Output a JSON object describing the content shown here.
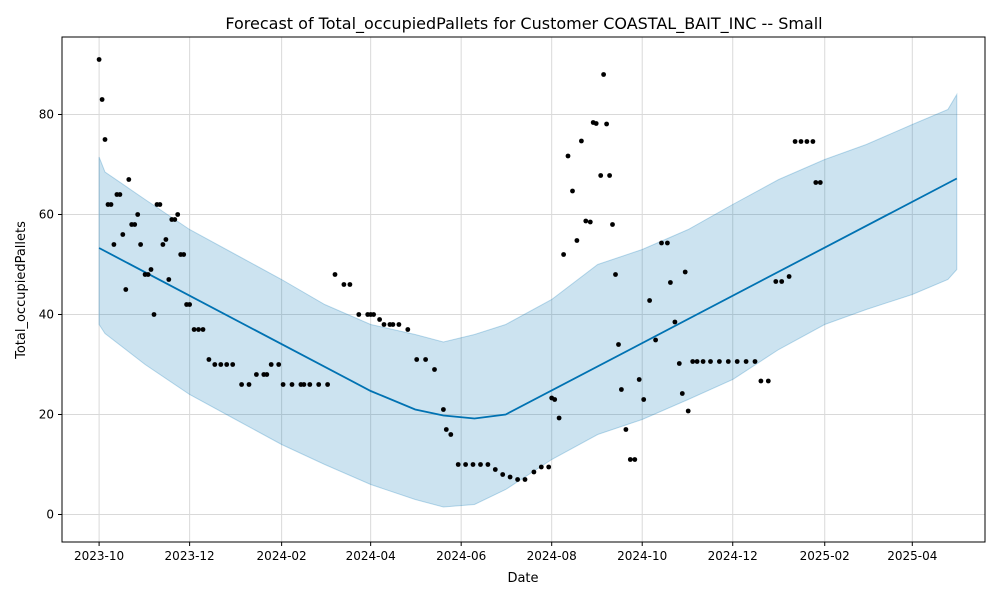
{
  "chart_data": {
    "type": "line",
    "title": "Forecast of Total_occupiedPallets for Customer COASTAL_BAIT_INC -- Small",
    "xlabel": "Date",
    "ylabel": "Total_occupiedPallets",
    "xlim": [
      "2023-09-06",
      "2025-05-20"
    ],
    "ylim": [
      -5.5,
      95.5
    ],
    "grid": true,
    "x_ticks": [
      "2023-10",
      "2023-12",
      "2024-02",
      "2024-04",
      "2024-06",
      "2024-08",
      "2024-10",
      "2024-12",
      "2025-02",
      "2025-04"
    ],
    "y_ticks": [
      0,
      20,
      40,
      60,
      80
    ],
    "colors": {
      "forecast": "#0072B2",
      "interval": "#0072B2",
      "observed": "#000000",
      "grid": "#d9d9d9"
    },
    "forecast": {
      "x": [
        "2023-10-01",
        "2024-04-01",
        "2024-05-01",
        "2024-05-20",
        "2024-06-10",
        "2024-07-01",
        "2025-05-01"
      ],
      "y": [
        53.3,
        24.7,
        21.0,
        19.8,
        19.2,
        20.0,
        67.2
      ]
    },
    "interval": {
      "x": [
        "2023-10-01",
        "2023-10-05",
        "2023-11-01",
        "2023-12-01",
        "2024-01-01",
        "2024-02-01",
        "2024-03-01",
        "2024-04-01",
        "2024-05-01",
        "2024-05-20",
        "2024-06-10",
        "2024-07-01",
        "2024-08-01",
        "2024-09-01",
        "2024-10-01",
        "2024-11-01",
        "2024-12-01",
        "2025-01-01",
        "2025-02-01",
        "2025-03-01",
        "2025-04-01",
        "2025-04-25",
        "2025-05-01"
      ],
      "lower": [
        38,
        36.2,
        30,
        24,
        19,
        14,
        10,
        6,
        3,
        1.5,
        2,
        5,
        11,
        16,
        19,
        23,
        27,
        33,
        38,
        41,
        44,
        47,
        49
      ],
      "upper": [
        71.5,
        68.5,
        63,
        57,
        52,
        47,
        42,
        38,
        36,
        34.5,
        36,
        38,
        43,
        50,
        53,
        57,
        62,
        67,
        71,
        74,
        78,
        81,
        84
      ]
    },
    "observed": {
      "x": [
        "2023-10-01",
        "2023-10-03",
        "2023-10-05",
        "2023-10-07",
        "2023-10-09",
        "2023-10-11",
        "2023-10-13",
        "2023-10-15",
        "2023-10-17",
        "2023-10-19",
        "2023-10-21",
        "2023-10-23",
        "2023-10-25",
        "2023-10-27",
        "2023-10-29",
        "2023-11-01",
        "2023-11-03",
        "2023-11-05",
        "2023-11-07",
        "2023-11-09",
        "2023-11-11",
        "2023-11-13",
        "2023-11-15",
        "2023-11-17",
        "2023-11-19",
        "2023-11-21",
        "2023-11-23",
        "2023-11-25",
        "2023-11-27",
        "2023-11-29",
        "2023-12-01",
        "2023-12-04",
        "2023-12-07",
        "2023-12-10",
        "2023-12-14",
        "2023-12-18",
        "2023-12-22",
        "2023-12-26",
        "2023-12-30",
        "2024-01-05",
        "2024-01-10",
        "2024-01-15",
        "2024-01-20",
        "2024-01-22",
        "2024-01-25",
        "2024-01-30",
        "2024-02-02",
        "2024-02-08",
        "2024-02-14",
        "2024-02-16",
        "2024-02-20",
        "2024-02-26",
        "2024-03-03",
        "2024-03-08",
        "2024-03-14",
        "2024-03-18",
        "2024-03-24",
        "2024-03-30",
        "2024-04-01",
        "2024-04-03",
        "2024-04-07",
        "2024-04-10",
        "2024-04-14",
        "2024-04-16",
        "2024-04-20",
        "2024-04-26",
        "2024-05-02",
        "2024-05-08",
        "2024-05-14",
        "2024-05-20",
        "2024-05-22",
        "2024-05-25",
        "2024-05-30",
        "2024-06-04",
        "2024-06-09",
        "2024-06-14",
        "2024-06-19",
        "2024-06-24",
        "2024-06-29",
        "2024-07-04",
        "2024-07-09",
        "2024-07-14",
        "2024-07-20",
        "2024-07-25",
        "2024-07-30",
        "2024-08-01",
        "2024-08-03",
        "2024-08-06",
        "2024-08-09",
        "2024-08-12",
        "2024-08-15",
        "2024-08-18",
        "2024-08-21",
        "2024-08-24",
        "2024-08-27",
        "2024-08-29",
        "2024-08-31",
        "2024-09-03",
        "2024-09-05",
        "2024-09-07",
        "2024-09-09",
        "2024-09-11",
        "2024-09-13",
        "2024-09-15",
        "2024-09-17",
        "2024-09-20",
        "2024-09-23",
        "2024-09-26",
        "2024-09-29",
        "2024-10-02",
        "2024-10-06",
        "2024-10-10",
        "2024-10-14",
        "2024-10-18",
        "2024-10-20",
        "2024-10-23",
        "2024-10-26",
        "2024-10-28",
        "2024-10-30",
        "2024-11-01",
        "2024-11-04",
        "2024-11-07",
        "2024-11-11",
        "2024-11-16",
        "2024-11-22",
        "2024-11-28",
        "2024-12-04",
        "2024-12-10",
        "2024-12-16",
        "2024-12-20",
        "2024-12-25",
        "2024-12-30",
        "2025-01-03",
        "2025-01-08",
        "2025-01-12",
        "2025-01-16",
        "2025-01-20",
        "2025-01-24",
        "2025-01-26",
        "2025-01-29"
      ],
      "y": [
        91,
        83,
        75,
        62,
        62,
        54,
        64,
        64,
        56,
        45,
        67,
        58,
        58,
        60,
        54,
        48,
        48,
        49,
        40,
        62,
        62,
        54,
        55,
        47,
        59,
        59,
        60,
        52,
        52,
        42,
        42,
        37,
        37,
        37,
        31,
        30,
        30,
        30,
        30,
        26,
        26,
        28,
        28,
        28,
        30,
        30,
        26,
        26,
        26,
        26,
        26,
        26,
        26,
        48,
        46,
        46,
        40,
        40,
        40,
        40,
        39,
        38,
        38,
        38,
        38,
        37,
        31,
        31,
        29,
        21,
        17,
        16,
        10,
        10,
        10,
        10,
        10,
        9,
        8,
        7.5,
        7,
        7,
        8.5,
        9.5,
        9.5,
        23.3,
        23,
        19.3,
        52,
        71.7,
        64.7,
        54.8,
        74.7,
        58.7,
        58.5,
        78.4,
        78.2,
        67.8,
        88,
        78.1,
        67.8,
        58,
        48,
        34,
        25,
        17,
        11,
        11,
        27,
        23,
        42.8,
        34.9,
        54.3,
        54.3,
        46.4,
        38.5,
        30.2,
        24.2,
        48.5,
        20.7,
        30.6,
        30.6,
        30.6,
        30.6,
        30.6,
        30.6,
        30.6,
        30.6,
        30.6,
        26.7,
        26.7,
        46.6,
        46.6,
        47.6,
        74.6,
        74.6,
        74.6,
        74.6,
        66.4,
        66.4
      ]
    }
  }
}
